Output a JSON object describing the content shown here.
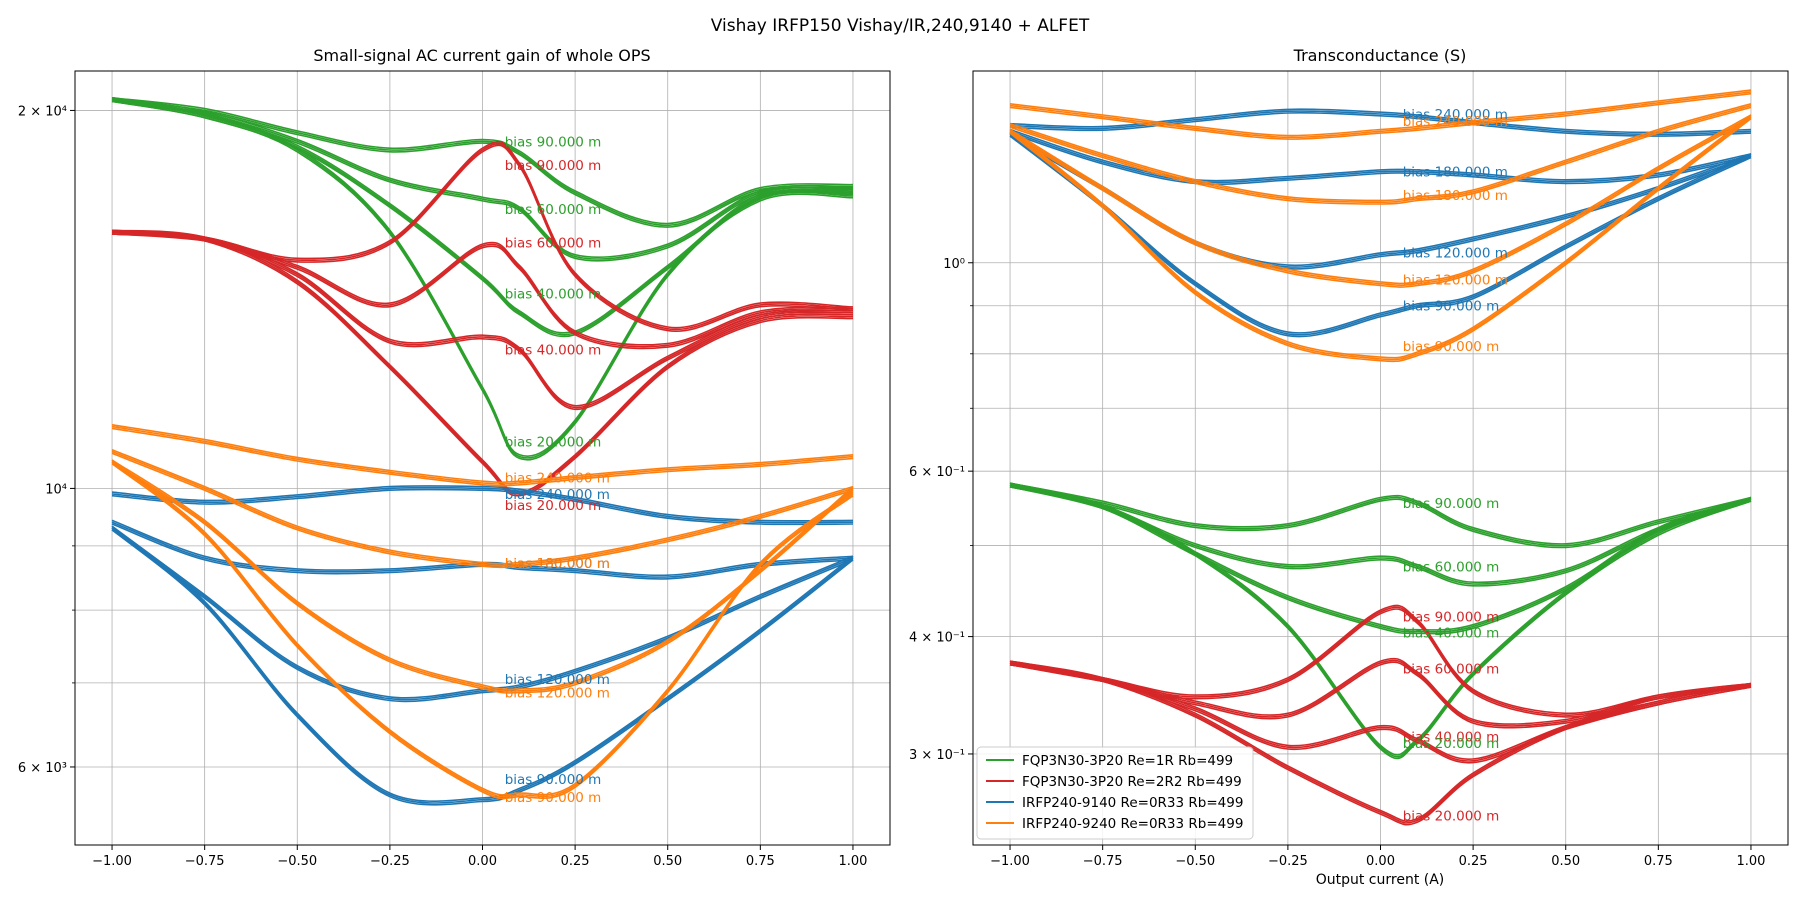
{
  "figure": {
    "title": "Vishay IRFP150 Vishay/IR,240,9140 + ALFET"
  },
  "colors": {
    "green": "#2ca02c",
    "red": "#d62728",
    "blue": "#1f77b4",
    "orange": "#ff7f0e",
    "grid": "#b0b0b0"
  },
  "chart_data": [
    {
      "type": "line",
      "title": "Small-signal AC current gain of whole OPS",
      "xlabel": "",
      "ylabel": "",
      "yscale": "log",
      "xlim": [
        -1.1,
        1.1
      ],
      "ylim": [
        5200,
        21500
      ],
      "grid": true,
      "x_ticks": [
        -1.0,
        -0.75,
        -0.5,
        -0.25,
        0.0,
        0.25,
        0.5,
        0.75,
        1.0
      ],
      "x_tick_labels": [
        "−1.00",
        "−0.75",
        "−0.50",
        "−0.25",
        "0.00",
        "0.25",
        "0.50",
        "0.75",
        "1.00"
      ],
      "y_ticks": [
        20000,
        10000,
        6000
      ],
      "y_tick_labels": [
        "2 × 10⁴",
        "10⁴",
        "6 × 10³"
      ],
      "y_minor_ticks": [
        7000,
        8000,
        9000
      ],
      "x": [
        -1.0,
        -0.75,
        -0.5,
        -0.25,
        0.0,
        0.1,
        0.25,
        0.5,
        0.75,
        1.0
      ],
      "series": [
        {
          "group": "green",
          "label": "bias 90.000 m",
          "values": [
            20400,
            20000,
            19200,
            18600,
            18900,
            18500,
            17200,
            16200,
            17300,
            17400
          ]
        },
        {
          "group": "green",
          "label": "bias 60.000 m",
          "values": [
            20400,
            19900,
            18900,
            17600,
            17000,
            16700,
            15300,
            15600,
            17200,
            17300
          ]
        },
        {
          "group": "green",
          "label": "bias 40.000 m",
          "values": [
            20400,
            19800,
            18700,
            16800,
            14700,
            13800,
            13300,
            15000,
            17100,
            17200
          ]
        },
        {
          "group": "green",
          "label": "bias 20.000 m",
          "values": [
            20400,
            19800,
            18600,
            16000,
            12000,
            10600,
            11300,
            14800,
            17000,
            17100
          ]
        },
        {
          "group": "red",
          "label": "bias 90.000 m",
          "values": [
            16000,
            15800,
            15200,
            15700,
            18600,
            18100,
            14800,
            13400,
            14000,
            13900
          ]
        },
        {
          "group": "red",
          "label": "bias 60.000 m",
          "values": [
            16000,
            15800,
            15000,
            14000,
            15600,
            15000,
            13300,
            13000,
            13800,
            13900
          ]
        },
        {
          "group": "red",
          "label": "bias 40.000 m",
          "values": [
            16000,
            15800,
            14800,
            13100,
            13200,
            12900,
            11600,
            12700,
            13700,
            13800
          ]
        },
        {
          "group": "red",
          "label": "bias 20.000 m",
          "values": [
            16000,
            15800,
            14600,
            12500,
            10500,
            9900,
            10600,
            12500,
            13600,
            13700
          ]
        },
        {
          "group": "blue",
          "label": "bias 240.000 m",
          "values": [
            9900,
            9750,
            9850,
            10000,
            10000,
            9950,
            9800,
            9500,
            9400,
            9400
          ]
        },
        {
          "group": "blue",
          "label": "bias 180.000 m",
          "values": [
            9400,
            8800,
            8600,
            8600,
            8700,
            8650,
            8600,
            8500,
            8700,
            8800
          ]
        },
        {
          "group": "blue",
          "label": "bias 120.000 m",
          "values": [
            9300,
            8200,
            7200,
            6800,
            6900,
            6950,
            7150,
            7600,
            8200,
            8800
          ]
        },
        {
          "group": "blue",
          "label": "bias 90.000 m",
          "values": [
            9300,
            8100,
            6600,
            5700,
            5650,
            5750,
            6050,
            6800,
            7700,
            8800
          ]
        },
        {
          "group": "orange",
          "label": "bias 240.000 m",
          "values": [
            11200,
            10900,
            10550,
            10300,
            10100,
            10100,
            10200,
            10350,
            10450,
            10600
          ]
        },
        {
          "group": "orange",
          "label": "bias 180.000 m",
          "values": [
            10700,
            10000,
            9300,
            8900,
            8700,
            8700,
            8800,
            9100,
            9500,
            10000
          ]
        },
        {
          "group": "orange",
          "label": "bias 120.000 m",
          "values": [
            10500,
            9400,
            8100,
            7300,
            6950,
            6900,
            7000,
            7550,
            8600,
            10000
          ]
        },
        {
          "group": "orange",
          "label": "bias 90.000 m",
          "values": [
            10500,
            9200,
            7500,
            6400,
            5750,
            5700,
            5800,
            6900,
            8700,
            9900
          ]
        }
      ],
      "annotations": [
        {
          "text": "bias 90.000 m",
          "color": "green",
          "x": 0.06,
          "y": 18900
        },
        {
          "text": "bias 90.000 m",
          "color": "red",
          "x": 0.06,
          "y": 18100
        },
        {
          "text": "bias 60.000 m",
          "color": "green",
          "x": 0.06,
          "y": 16700
        },
        {
          "text": "bias 60.000 m",
          "color": "red",
          "x": 0.06,
          "y": 15700
        },
        {
          "text": "bias 40.000 m",
          "color": "green",
          "x": 0.06,
          "y": 14300
        },
        {
          "text": "bias 40.000 m",
          "color": "red",
          "x": 0.06,
          "y": 12900
        },
        {
          "text": "bias 20.000 m",
          "color": "green",
          "x": 0.06,
          "y": 10900
        },
        {
          "text": "bias 240.000 m",
          "color": "orange",
          "x": 0.06,
          "y": 10200
        },
        {
          "text": "bias 240.000 m",
          "color": "blue",
          "x": 0.06,
          "y": 9900
        },
        {
          "text": "bias 20.000 m",
          "color": "red",
          "x": 0.06,
          "y": 9700
        },
        {
          "text": "bias 180.000 m",
          "color": "blue",
          "x": 0.06,
          "y": 8720
        },
        {
          "text": "bias 180.000 m",
          "color": "orange",
          "x": 0.06,
          "y": 8720
        },
        {
          "text": "bias 120.000 m",
          "color": "blue",
          "x": 0.06,
          "y": 7050
        },
        {
          "text": "bias 120.000 m",
          "color": "orange",
          "x": 0.06,
          "y": 6880
        },
        {
          "text": "bias 90.000 m",
          "color": "blue",
          "x": 0.06,
          "y": 5870
        },
        {
          "text": "bias 90.000 m",
          "color": "orange",
          "x": 0.06,
          "y": 5680
        }
      ]
    },
    {
      "type": "line",
      "title": "Transconductance (S)",
      "xlabel": "Output current (A)",
      "ylabel": "",
      "yscale": "log",
      "xlim": [
        -1.1,
        1.1
      ],
      "ylim": [
        0.24,
        1.6
      ],
      "grid": true,
      "x_ticks": [
        -1.0,
        -0.75,
        -0.5,
        -0.25,
        0.0,
        0.25,
        0.5,
        0.75,
        1.0
      ],
      "x_tick_labels": [
        "−1.00",
        "−0.75",
        "−0.50",
        "−0.25",
        "0.00",
        "0.25",
        "0.50",
        "0.75",
        "1.00"
      ],
      "y_ticks": [
        1.0,
        0.6,
        0.4,
        0.3
      ],
      "y_tick_labels": [
        "10⁰",
        "6 × 10⁻¹",
        "4 × 10⁻¹",
        "3 × 10⁻¹"
      ],
      "y_minor_ticks": [
        0.5,
        0.7,
        0.8,
        0.9
      ],
      "x": [
        -1.0,
        -0.75,
        -0.5,
        -0.25,
        0.0,
        0.1,
        0.25,
        0.5,
        0.75,
        1.0
      ],
      "series": [
        {
          "group": "green",
          "label": "bias 90.000 m",
          "values": [
            0.58,
            0.555,
            0.525,
            0.525,
            0.56,
            0.555,
            0.52,
            0.5,
            0.53,
            0.56
          ]
        },
        {
          "group": "green",
          "label": "bias 60.000 m",
          "values": [
            0.58,
            0.55,
            0.5,
            0.475,
            0.485,
            0.475,
            0.455,
            0.47,
            0.52,
            0.56
          ]
        },
        {
          "group": "green",
          "label": "bias 40.000 m",
          "values": [
            0.58,
            0.55,
            0.49,
            0.44,
            0.41,
            0.405,
            0.41,
            0.45,
            0.52,
            0.56
          ]
        },
        {
          "group": "green",
          "label": "bias 20.000 m",
          "values": [
            0.58,
            0.55,
            0.49,
            0.41,
            0.305,
            0.31,
            0.365,
            0.445,
            0.515,
            0.56
          ]
        },
        {
          "group": "red",
          "label": "bias 90.000 m",
          "values": [
            0.375,
            0.36,
            0.345,
            0.36,
            0.425,
            0.415,
            0.35,
            0.33,
            0.345,
            0.355
          ]
        },
        {
          "group": "red",
          "label": "bias 60.000 m",
          "values": [
            0.375,
            0.36,
            0.34,
            0.33,
            0.375,
            0.365,
            0.325,
            0.325,
            0.345,
            0.355
          ]
        },
        {
          "group": "red",
          "label": "bias 40.000 m",
          "values": [
            0.375,
            0.36,
            0.335,
            0.305,
            0.32,
            0.31,
            0.295,
            0.32,
            0.34,
            0.355
          ]
        },
        {
          "group": "red",
          "label": "bias 20.000 m",
          "values": [
            0.375,
            0.36,
            0.33,
            0.29,
            0.26,
            0.255,
            0.285,
            0.32,
            0.34,
            0.355
          ]
        },
        {
          "group": "blue",
          "label": "bias 240.000 m",
          "values": [
            1.4,
            1.39,
            1.42,
            1.45,
            1.44,
            1.43,
            1.41,
            1.38,
            1.37,
            1.38
          ]
        },
        {
          "group": "blue",
          "label": "bias 180.000 m",
          "values": [
            1.38,
            1.28,
            1.22,
            1.23,
            1.25,
            1.25,
            1.24,
            1.22,
            1.24,
            1.3
          ]
        },
        {
          "group": "blue",
          "label": "bias 120.000 m",
          "values": [
            1.37,
            1.2,
            1.05,
            0.99,
            1.02,
            1.03,
            1.06,
            1.12,
            1.2,
            1.3
          ]
        },
        {
          "group": "blue",
          "label": "bias 90.000 m",
          "values": [
            1.37,
            1.15,
            0.95,
            0.84,
            0.88,
            0.9,
            0.92,
            1.04,
            1.17,
            1.3
          ]
        },
        {
          "group": "orange",
          "label": "bias 240.000 m",
          "values": [
            1.47,
            1.43,
            1.39,
            1.36,
            1.38,
            1.39,
            1.41,
            1.44,
            1.48,
            1.52
          ]
        },
        {
          "group": "orange",
          "label": "bias 180.000 m",
          "values": [
            1.4,
            1.3,
            1.22,
            1.17,
            1.16,
            1.17,
            1.19,
            1.28,
            1.38,
            1.47
          ]
        },
        {
          "group": "orange",
          "label": "bias 120.000 m",
          "values": [
            1.38,
            1.2,
            1.05,
            0.98,
            0.95,
            0.95,
            0.98,
            1.1,
            1.26,
            1.43
          ]
        },
        {
          "group": "orange",
          "label": "bias 90.000 m",
          "values": [
            1.38,
            1.15,
            0.93,
            0.82,
            0.79,
            0.8,
            0.85,
            1.0,
            1.2,
            1.43
          ]
        }
      ],
      "annotations": [
        {
          "text": "bias 240.000 m",
          "color": "blue",
          "x": 0.06,
          "y": 1.44
        },
        {
          "text": "bias 240.000 m",
          "color": "orange",
          "x": 0.06,
          "y": 1.415
        },
        {
          "text": "bias 180.000 m",
          "color": "blue",
          "x": 0.06,
          "y": 1.25
        },
        {
          "text": "bias 180.000 m",
          "color": "orange",
          "x": 0.06,
          "y": 1.18
        },
        {
          "text": "bias 120.000 m",
          "color": "blue",
          "x": 0.06,
          "y": 1.025
        },
        {
          "text": "bias 120.000 m",
          "color": "orange",
          "x": 0.06,
          "y": 0.96
        },
        {
          "text": "bias 90.000 m",
          "color": "blue",
          "x": 0.06,
          "y": 0.9
        },
        {
          "text": "bias 90.000 m",
          "color": "orange",
          "x": 0.06,
          "y": 0.815
        },
        {
          "text": "bias 90.000 m",
          "color": "green",
          "x": 0.06,
          "y": 0.555
        },
        {
          "text": "bias 60.000 m",
          "color": "green",
          "x": 0.06,
          "y": 0.475
        },
        {
          "text": "bias 90.000 m",
          "color": "red",
          "x": 0.06,
          "y": 0.42
        },
        {
          "text": "bias 40.000 m",
          "color": "green",
          "x": 0.06,
          "y": 0.404
        },
        {
          "text": "bias 60.000 m",
          "color": "red",
          "x": 0.06,
          "y": 0.37
        },
        {
          "text": "bias 40.000 m",
          "color": "red",
          "x": 0.06,
          "y": 0.313
        },
        {
          "text": "bias 20.000 m",
          "color": "green",
          "x": 0.06,
          "y": 0.308
        },
        {
          "text": "bias 20.000 m",
          "color": "red",
          "x": 0.06,
          "y": 0.258
        }
      ]
    }
  ],
  "legend": {
    "placement": "lower-left",
    "entries": [
      {
        "label": "FQP3N30-3P20 Re=1R Rb=499",
        "color": "green"
      },
      {
        "label": "FQP3N30-3P20 Re=2R2 Rb=499",
        "color": "red"
      },
      {
        "label": "IRFP240-9140 Re=0R33 Rb=499",
        "color": "blue"
      },
      {
        "label": "IRFP240-9240 Re=0R33 Rb=499",
        "color": "orange"
      }
    ]
  }
}
